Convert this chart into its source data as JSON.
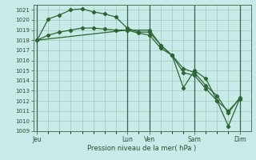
{
  "background_color": "#c8eae8",
  "grid_color": "#a0c8b8",
  "line_color": "#2d6632",
  "ylabel": "Pression niveau de la mer( hPa )",
  "ylim": [
    1009,
    1021.5
  ],
  "yticks": [
    1009,
    1010,
    1011,
    1012,
    1013,
    1014,
    1015,
    1016,
    1017,
    1018,
    1019,
    1020,
    1021
  ],
  "x_day_labels": [
    "Jeu",
    "Lun",
    "Ven",
    "Sam",
    "Dim"
  ],
  "x_day_positions": [
    0,
    48,
    60,
    84,
    108
  ],
  "xlim": [
    -2,
    114
  ],
  "vline_positions": [
    0,
    48,
    60,
    84,
    108
  ],
  "line1": {
    "x": [
      0,
      6,
      12,
      18,
      24,
      30,
      36,
      42,
      48,
      54,
      60,
      66,
      72,
      78,
      84,
      90,
      96,
      102,
      108
    ],
    "y": [
      1018.0,
      1020.1,
      1020.5,
      1021.0,
      1021.1,
      1020.8,
      1020.6,
      1020.3,
      1019.2,
      1018.8,
      1018.8,
      1017.5,
      1016.5,
      1014.8,
      1014.5,
      1013.2,
      1012.0,
      1011.0,
      1012.2
    ]
  },
  "line2": {
    "x": [
      0,
      6,
      12,
      18,
      24,
      30,
      36,
      42,
      48,
      54,
      60,
      66,
      72,
      78,
      84,
      90,
      96,
      102,
      108
    ],
    "y": [
      1018.0,
      1018.5,
      1018.8,
      1019.0,
      1019.2,
      1019.2,
      1019.1,
      1019.0,
      1019.0,
      1018.7,
      1018.5,
      1017.2,
      1016.5,
      1015.2,
      1014.8,
      1013.5,
      1012.5,
      1010.8,
      1012.3
    ]
  },
  "line3": {
    "x": [
      0,
      48,
      60,
      66,
      72,
      78,
      84,
      90,
      96,
      102,
      108
    ],
    "y": [
      1018.0,
      1019.0,
      1019.0,
      1017.5,
      1016.5,
      1013.3,
      1015.0,
      1014.2,
      1012.0,
      1009.5,
      1012.2
    ]
  }
}
